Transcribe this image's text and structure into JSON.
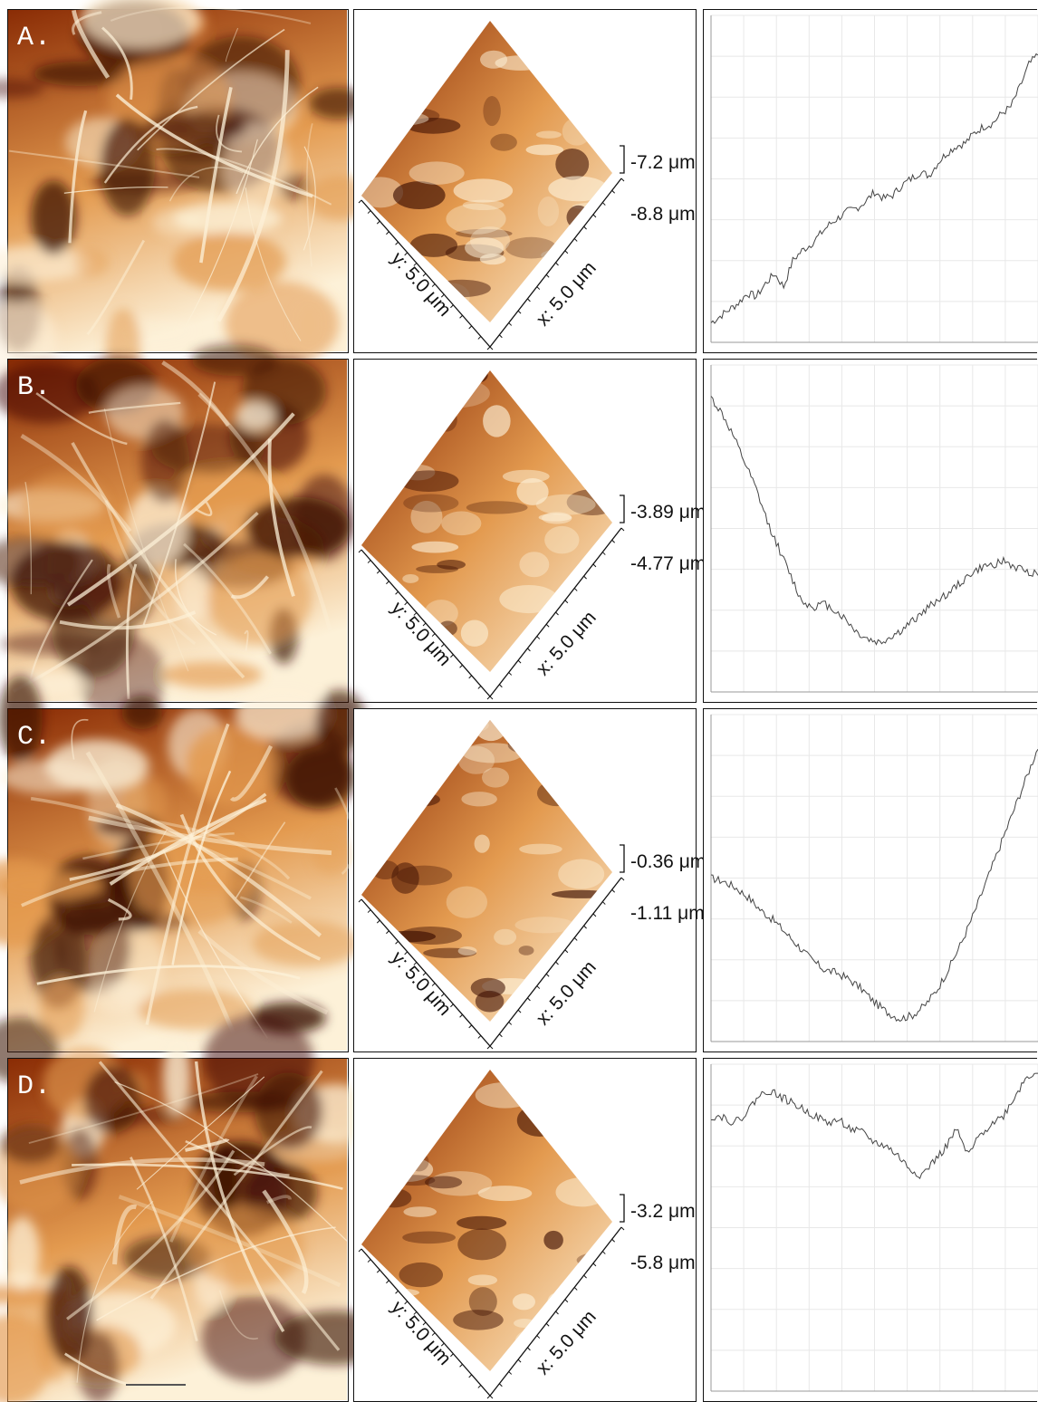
{
  "colors": {
    "afm_light": "#fdf1d8",
    "afm_mid": "#e39a4f",
    "afm_dark": "#8a2c05",
    "afm_black": "#3a0c00",
    "profile_line": "#444444",
    "grid": "#e8e8e8"
  },
  "rows": [
    {
      "label": "A.",
      "z_top": "-7.2 μm",
      "z_bottom": "-8.8 μm",
      "x_axis": "x: 5.0 μm",
      "y_axis": "y: 5.0 μm",
      "profile": [
        0.06,
        0.08,
        0.1,
        0.12,
        0.15,
        0.14,
        0.18,
        0.21,
        0.17,
        0.25,
        0.28,
        0.3,
        0.33,
        0.36,
        0.38,
        0.4,
        0.41,
        0.43,
        0.46,
        0.44,
        0.45,
        0.48,
        0.5,
        0.52,
        0.51,
        0.55,
        0.58,
        0.6,
        0.61,
        0.64,
        0.66,
        0.67,
        0.7,
        0.72,
        0.78,
        0.85,
        0.88
      ]
    },
    {
      "label": "B.",
      "z_top": "-3.89 μm",
      "z_bottom": "-4.77 μm",
      "x_axis": "x: 5.0 μm",
      "y_axis": "y: 5.0 μm",
      "profile": [
        0.9,
        0.85,
        0.78,
        0.7,
        0.62,
        0.52,
        0.44,
        0.36,
        0.28,
        0.26,
        0.27,
        0.25,
        0.22,
        0.18,
        0.16,
        0.15,
        0.17,
        0.19,
        0.22,
        0.25,
        0.28,
        0.3,
        0.33,
        0.36,
        0.38,
        0.39,
        0.4,
        0.38,
        0.37,
        0.36
      ]
    },
    {
      "label": "C.",
      "z_top": "-0.36 μm",
      "z_bottom": "-1.11 μm",
      "x_axis": "x: 5.0 μm",
      "y_axis": "y: 5.0 μm",
      "profile": [
        0.5,
        0.49,
        0.47,
        0.44,
        0.4,
        0.37,
        0.33,
        0.29,
        0.25,
        0.22,
        0.21,
        0.19,
        0.16,
        0.12,
        0.09,
        0.07,
        0.08,
        0.11,
        0.16,
        0.23,
        0.31,
        0.4,
        0.5,
        0.6,
        0.7,
        0.8,
        0.9
      ]
    },
    {
      "label": "D.",
      "z_top": "-3.2 μm",
      "z_bottom": "-5.8 μm",
      "x_axis": "x: 5.0 μm",
      "y_axis": "y: 5.0 μm",
      "profile": [
        0.84,
        0.84,
        0.82,
        0.85,
        0.9,
        0.92,
        0.9,
        0.88,
        0.86,
        0.84,
        0.82,
        0.83,
        0.8,
        0.79,
        0.76,
        0.75,
        0.72,
        0.68,
        0.66,
        0.7,
        0.74,
        0.8,
        0.72,
        0.78,
        0.82,
        0.84,
        0.9,
        0.96,
        0.98
      ]
    }
  ]
}
